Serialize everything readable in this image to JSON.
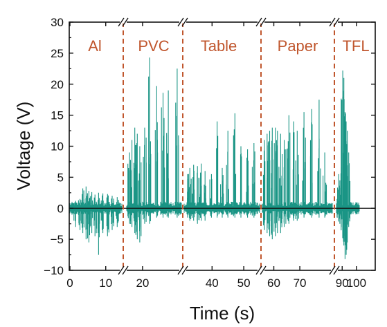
{
  "chart_data": {
    "type": "line",
    "xlabel": "Time (s)",
    "ylabel": "Voltage (V)",
    "ylim": [
      -10,
      30
    ],
    "y_ticks": [
      -10,
      -5,
      0,
      5,
      10,
      15,
      20,
      25,
      30
    ],
    "axis_break_marks": true,
    "grid": false,
    "baseline": 0,
    "series_color": "#1a9585",
    "divider_color": "#c0562d",
    "label_color": "#c0562d",
    "segments": [
      {
        "label": "Al",
        "x_ticks": [
          0,
          10
        ],
        "xlim": [
          0,
          14.5
        ],
        "max_voltage": 3.5,
        "min_voltage": -7.5,
        "spikes": [
          {
            "x": 1.6,
            "high": 1.2,
            "low": -3.0
          },
          {
            "x": 2.8,
            "high": 1.5,
            "low": -3.5
          },
          {
            "x": 3.6,
            "high": 3.2,
            "low": -4.0
          },
          {
            "x": 4.5,
            "high": 3.5,
            "low": -5.0
          },
          {
            "x": 5.3,
            "high": 2.8,
            "low": -5.5
          },
          {
            "x": 6.1,
            "high": 2.6,
            "low": -4.0
          },
          {
            "x": 7.0,
            "high": 2.2,
            "low": -4.5
          },
          {
            "x": 8.0,
            "high": 2.5,
            "low": -7.5
          },
          {
            "x": 9.2,
            "high": 2.4,
            "low": -4.0
          },
          {
            "x": 10.5,
            "high": 2.3,
            "low": -4.5
          },
          {
            "x": 11.8,
            "high": 2.0,
            "low": -3.5
          },
          {
            "x": 13.2,
            "high": 1.8,
            "low": -3.0
          }
        ]
      },
      {
        "label": "PVC",
        "x_ticks": [
          20
        ],
        "xlim": [
          15.5,
          31
        ],
        "max_voltage": 24.3,
        "min_voltage": -5.5,
        "spikes": [
          {
            "x": 16.3,
            "high": 9.0,
            "low": -2.5
          },
          {
            "x": 17.0,
            "high": 11.0,
            "low": -3.0
          },
          {
            "x": 17.8,
            "high": 13.0,
            "low": -4.0
          },
          {
            "x": 18.5,
            "high": 12.0,
            "low": -5.0
          },
          {
            "x": 19.2,
            "high": 10.0,
            "low": -5.5
          },
          {
            "x": 20.6,
            "high": 13.0,
            "low": -2.5
          },
          {
            "x": 22.0,
            "high": 24.3,
            "low": -2.5
          },
          {
            "x": 24.0,
            "high": 19.7,
            "low": -1.5
          },
          {
            "x": 25.8,
            "high": 18.6,
            "low": -1.5
          },
          {
            "x": 27.3,
            "high": 19.0,
            "low": -1.5
          },
          {
            "x": 29.8,
            "high": 22.5,
            "low": -1.5
          }
        ]
      },
      {
        "label": "Table",
        "x_ticks": [
          40,
          50
        ],
        "xlim": [
          31.2,
          55
        ],
        "max_voltage": 15.3,
        "min_voltage": -2.5,
        "spikes": [
          {
            "x": 32.3,
            "high": 5.5,
            "low": -1.5
          },
          {
            "x": 33.0,
            "high": 6.5,
            "low": -2.0
          },
          {
            "x": 34.2,
            "high": 7.0,
            "low": -2.0
          },
          {
            "x": 35.4,
            "high": 6.8,
            "low": -2.5
          },
          {
            "x": 36.6,
            "high": 7.2,
            "low": -2.0
          },
          {
            "x": 37.8,
            "high": 6.0,
            "low": -2.0
          },
          {
            "x": 39.8,
            "high": 5.5,
            "low": -1.5
          },
          {
            "x": 41.6,
            "high": 14.0,
            "low": -1.5
          },
          {
            "x": 43.2,
            "high": 6.5,
            "low": -1.5
          },
          {
            "x": 45.0,
            "high": 12.5,
            "low": -1.5
          },
          {
            "x": 47.2,
            "high": 15.3,
            "low": -1.5
          },
          {
            "x": 49.1,
            "high": 10.0,
            "low": -1.5
          },
          {
            "x": 51.2,
            "high": 9.5,
            "low": -1.5
          },
          {
            "x": 53.2,
            "high": 10.5,
            "low": -1.5
          }
        ]
      },
      {
        "label": "Paper",
        "x_ticks": [
          60,
          70
        ],
        "xlim": [
          55.6,
          82.5
        ],
        "max_voltage": 17.5,
        "min_voltage": -5.0,
        "spikes": [
          {
            "x": 56.4,
            "high": 11.0,
            "low": -3.5
          },
          {
            "x": 57.4,
            "high": 12.0,
            "low": -4.0
          },
          {
            "x": 58.4,
            "high": 12.5,
            "low": -4.5
          },
          {
            "x": 59.4,
            "high": 13.0,
            "low": -5.0
          },
          {
            "x": 60.6,
            "high": 13.0,
            "low": -4.5
          },
          {
            "x": 61.4,
            "high": 12.5,
            "low": -4.0
          },
          {
            "x": 62.6,
            "high": 12.0,
            "low": -4.0
          },
          {
            "x": 64.0,
            "high": 11.0,
            "low": -3.0
          },
          {
            "x": 65.8,
            "high": 15.0,
            "low": -2.5
          },
          {
            "x": 67.6,
            "high": 14.0,
            "low": -2.0
          },
          {
            "x": 69.0,
            "high": 12.5,
            "low": -2.0
          },
          {
            "x": 71.6,
            "high": 15.5,
            "low": -1.5
          },
          {
            "x": 74.6,
            "high": 16.0,
            "low": -1.5
          },
          {
            "x": 77.4,
            "high": 17.5,
            "low": -1.5
          },
          {
            "x": 79.6,
            "high": 9.0,
            "low": -1.5
          }
        ]
      },
      {
        "label": "TFL",
        "x_ticks": [
          90,
          100
        ],
        "xlim": [
          86,
          102
        ],
        "max_voltage": 22.2,
        "min_voltage": -8.2,
        "spikes": [
          {
            "x": 87.6,
            "high": 5.5,
            "low": -2.0
          },
          {
            "x": 88.4,
            "high": 4.5,
            "low": -2.5
          },
          {
            "x": 89.4,
            "high": 10.0,
            "low": -3.0
          },
          {
            "x": 90.4,
            "high": 22.2,
            "low": -4.0
          },
          {
            "x": 91.2,
            "high": 21.0,
            "low": -6.0
          },
          {
            "x": 92.0,
            "high": 15.5,
            "low": -8.2
          },
          {
            "x": 92.8,
            "high": 14.0,
            "low": -7.5
          },
          {
            "x": 93.6,
            "high": 12.5,
            "low": -5.5
          },
          {
            "x": 94.6,
            "high": 9.0,
            "low": -3.0
          }
        ]
      }
    ]
  }
}
